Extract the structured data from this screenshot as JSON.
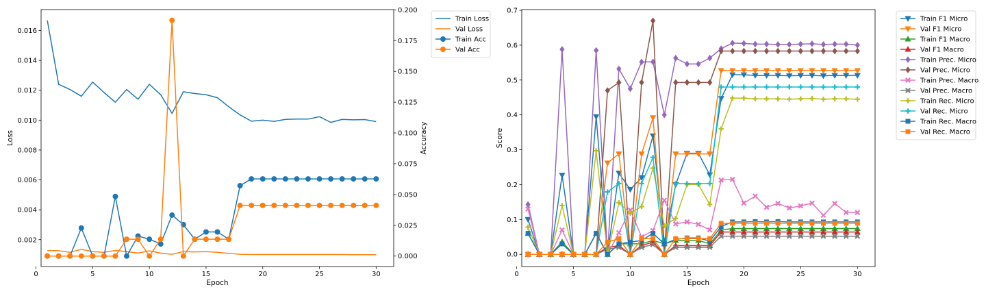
{
  "chart_data": [
    {
      "type": "line",
      "xlabel": "Epoch",
      "ylabel": "Loss",
      "ylabel_right": "Accuracy",
      "x": [
        1,
        2,
        3,
        4,
        5,
        6,
        7,
        8,
        9,
        10,
        11,
        12,
        13,
        14,
        15,
        16,
        17,
        18,
        19,
        20,
        21,
        22,
        23,
        24,
        25,
        26,
        27,
        28,
        29,
        30
      ],
      "xlim": [
        0.45,
        31.55
      ],
      "xticks": [
        0,
        5,
        10,
        15,
        20,
        25,
        30
      ],
      "ylim": [
        0.0002,
        0.0174
      ],
      "yticks": [
        0.002,
        0.004,
        0.006,
        0.008,
        0.01,
        0.012,
        0.014,
        0.016
      ],
      "ytick_labels": [
        "0.002",
        "0.004",
        "0.006",
        "0.008",
        "0.010",
        "0.012",
        "0.014",
        "0.016"
      ],
      "y2lim": [
        -0.0085,
        0.2002
      ],
      "y2ticks": [
        0,
        0.025,
        0.05,
        0.075,
        0.1,
        0.125,
        0.15,
        0.175,
        0.2
      ],
      "y2tick_labels": [
        "0.000",
        "0.025",
        "0.050",
        "0.075",
        "0.100",
        "0.125",
        "0.150",
        "0.175",
        "0.200"
      ],
      "legend_position": "outside-right",
      "grid": false,
      "series": [
        {
          "name": "Train Loss",
          "color": "#1f77b4",
          "marker": "none",
          "axis": "left",
          "values": [
            0.01668,
            0.0124,
            0.01205,
            0.0116,
            0.01255,
            0.01185,
            0.0112,
            0.01205,
            0.0114,
            0.0124,
            0.0117,
            0.01045,
            0.0119,
            0.01178,
            0.0117,
            0.0115,
            0.0109,
            0.01035,
            0.00993,
            0.01,
            0.00992,
            0.01005,
            0.01007,
            0.01007,
            0.01023,
            0.00985,
            0.01005,
            0.01002,
            0.01004,
            0.0099
          ]
        },
        {
          "name": "Val Loss",
          "color": "#ff7f0e",
          "marker": "none",
          "axis": "left",
          "values": [
            0.00128,
            0.00126,
            0.00115,
            0.00135,
            0.0012,
            0.00115,
            0.00128,
            0.0012,
            0.0011,
            0.00125,
            0.0011,
            0.00102,
            0.0012,
            0.00118,
            0.0012,
            0.00115,
            0.00108,
            0.00102,
            0.001,
            0.001,
            0.001,
            0.001,
            0.001,
            0.001,
            0.001,
            0.001,
            0.001,
            0.00099,
            0.00099,
            0.00099
          ]
        },
        {
          "name": "Train Acc",
          "color": "#1f77b4",
          "marker": "circle",
          "axis": "right",
          "values": [
            0,
            0,
            0,
            0.0228,
            0,
            0,
            0.0484,
            0,
            0.0163,
            0.0137,
            0.0098,
            0.0333,
            0.0255,
            0.0137,
            0.0196,
            0.0196,
            0.0137,
            0.0572,
            0.0627,
            0.0627,
            0.0627,
            0.0627,
            0.0627,
            0.0627,
            0.0627,
            0.0627,
            0.0627,
            0.0627,
            0.0627,
            0.0627
          ]
        },
        {
          "name": "Val Acc",
          "color": "#ff7f0e",
          "marker": "circle",
          "axis": "right",
          "values": [
            0,
            0,
            0,
            0,
            0,
            0,
            0,
            0.0137,
            0.0137,
            0,
            0.0137,
            0.1915,
            0,
            0.0137,
            0.0137,
            0.0137,
            0.0137,
            0.0412,
            0.0412,
            0.0412,
            0.0412,
            0.0412,
            0.0412,
            0.0412,
            0.0412,
            0.0412,
            0.0412,
            0.0412,
            0.0412,
            0.0412
          ]
        }
      ]
    },
    {
      "type": "line",
      "xlabel": "Epoch",
      "ylabel": "Score",
      "x": [
        1,
        2,
        3,
        4,
        5,
        6,
        7,
        8,
        9,
        10,
        11,
        12,
        13,
        14,
        15,
        16,
        17,
        18,
        19,
        20,
        21,
        22,
        23,
        24,
        25,
        26,
        27,
        28,
        29,
        30
      ],
      "xlim": [
        0.45,
        31.55
      ],
      "xticks": [
        0,
        5,
        10,
        15,
        20,
        25,
        30
      ],
      "ylim": [
        -0.035,
        0.702
      ],
      "yticks": [
        0,
        0.1,
        0.2,
        0.3,
        0.4,
        0.5,
        0.6,
        0.7
      ],
      "ytick_labels": [
        "0.0",
        "0.1",
        "0.2",
        "0.3",
        "0.4",
        "0.5",
        "0.6",
        "0.7"
      ],
      "legend_position": "outside-right",
      "grid": false,
      "series": [
        {
          "name": "Train F1 Micro",
          "color": "#1f77b4",
          "marker": "tri_down",
          "values": [
            0.1,
            0,
            0,
            0.227,
            0,
            0,
            0.395,
            0,
            0.233,
            0.186,
            0.22,
            0.34,
            0.035,
            0.2,
            0.29,
            0.29,
            0.228,
            0.447,
            0.515,
            0.515,
            0.513,
            0.513,
            0.513,
            0.512,
            0.513,
            0.513,
            0.512,
            0.513,
            0.513,
            0.513
          ]
        },
        {
          "name": "Val F1 Micro",
          "color": "#ff7f0e",
          "marker": "tri_down",
          "values": [
            0,
            0,
            0,
            0,
            0,
            0,
            0,
            0.262,
            0.288,
            0,
            0.288,
            0.392,
            0,
            0.288,
            0.288,
            0.288,
            0.288,
            0.527,
            0.527,
            0.527,
            0.527,
            0.527,
            0.527,
            0.527,
            0.527,
            0.527,
            0.527,
            0.527,
            0.527,
            0.527
          ]
        },
        {
          "name": "Train F1 Macro",
          "color": "#2ca02c",
          "marker": "tri_up",
          "values": [
            0.06,
            0,
            0,
            0.036,
            0,
            0,
            0.06,
            0,
            0.03,
            0.03,
            0.03,
            0.04,
            0.03,
            0.04,
            0.04,
            0.04,
            0.03,
            0.07,
            0.074,
            0.074,
            0.074,
            0.074,
            0.074,
            0.074,
            0.074,
            0.074,
            0.074,
            0.074,
            0.074,
            0.074
          ]
        },
        {
          "name": "Val F1 Macro",
          "color": "#d62728",
          "marker": "tri_up",
          "values": [
            0,
            0,
            0,
            0,
            0,
            0,
            0,
            0.02,
            0.025,
            0,
            0.025,
            0.035,
            0,
            0.025,
            0.025,
            0.025,
            0.025,
            0.064,
            0.064,
            0.064,
            0.064,
            0.064,
            0.064,
            0.064,
            0.064,
            0.064,
            0.064,
            0.064,
            0.064,
            0.064
          ]
        },
        {
          "name": "Train Prec. Micro",
          "color": "#9467bd",
          "marker": "diamond",
          "values": [
            0.143,
            0,
            0,
            0.588,
            0,
            0,
            0.585,
            0,
            0.532,
            0.475,
            0.552,
            0.552,
            0.4,
            0.563,
            0.546,
            0.546,
            0.563,
            0.59,
            0.606,
            0.605,
            0.603,
            0.603,
            0.602,
            0.602,
            0.603,
            0.604,
            0.602,
            0.603,
            0.603,
            0.6
          ]
        },
        {
          "name": "Val Prec. Micro",
          "color": "#8c564b",
          "marker": "diamond",
          "values": [
            0,
            0,
            0,
            0,
            0,
            0,
            0,
            0.47,
            0.493,
            0,
            0.493,
            0.67,
            0,
            0.493,
            0.493,
            0.493,
            0.493,
            0.583,
            0.583,
            0.583,
            0.583,
            0.583,
            0.583,
            0.583,
            0.583,
            0.583,
            0.583,
            0.583,
            0.583,
            0.583
          ]
        },
        {
          "name": "Train Prec. Macro",
          "color": "#e377c2",
          "marker": "x",
          "values": [
            0.13,
            0,
            0,
            0.07,
            0,
            0,
            0.06,
            0,
            0.062,
            0.127,
            0.05,
            0.068,
            0.155,
            0.087,
            0.093,
            0.086,
            0.07,
            0.213,
            0.215,
            0.147,
            0.167,
            0.135,
            0.146,
            0.133,
            0.139,
            0.147,
            0.112,
            0.146,
            0.12,
            0.12
          ]
        },
        {
          "name": "Val Prec. Macro",
          "color": "#7f7f7f",
          "marker": "x",
          "values": [
            0,
            0,
            0,
            0,
            0,
            0,
            0,
            0.015,
            0.02,
            0,
            0.02,
            0.028,
            0,
            0.02,
            0.02,
            0.02,
            0.02,
            0.052,
            0.052,
            0.052,
            0.052,
            0.052,
            0.052,
            0.052,
            0.052,
            0.052,
            0.052,
            0.052,
            0.052,
            0.052
          ]
        },
        {
          "name": "Train Rec. Micro",
          "color": "#bcbd22",
          "marker": "plus",
          "values": [
            0.078,
            0,
            0,
            0.14,
            0,
            0,
            0.297,
            0,
            0.148,
            0.118,
            0.137,
            0.247,
            0.082,
            0.103,
            0.2,
            0.2,
            0.143,
            0.36,
            0.448,
            0.448,
            0.446,
            0.446,
            0.446,
            0.445,
            0.446,
            0.447,
            0.445,
            0.446,
            0.446,
            0.445
          ]
        },
        {
          "name": "Val Rec. Micro",
          "color": "#17becf",
          "marker": "plus",
          "values": [
            0,
            0,
            0,
            0,
            0,
            0,
            0,
            0.179,
            0.203,
            0,
            0.203,
            0.278,
            0,
            0.203,
            0.203,
            0.203,
            0.203,
            0.48,
            0.48,
            0.48,
            0.48,
            0.48,
            0.48,
            0.48,
            0.48,
            0.48,
            0.48,
            0.48,
            0.48,
            0.48
          ]
        },
        {
          "name": "Train Rec. Macro",
          "color": "#1f77b4",
          "marker": "square",
          "values": [
            0.06,
            0,
            0,
            0.03,
            0,
            0,
            0.06,
            0,
            0.03,
            0.035,
            0.04,
            0.06,
            0.03,
            0.043,
            0.047,
            0.047,
            0.038,
            0.08,
            0.093,
            0.093,
            0.094,
            0.093,
            0.094,
            0.093,
            0.093,
            0.093,
            0.093,
            0.093,
            0.093,
            0.093
          ]
        },
        {
          "name": "Val Rec. Macro",
          "color": "#ff7f0e",
          "marker": "square",
          "values": [
            0,
            0,
            0,
            0,
            0,
            0,
            0,
            0.035,
            0.045,
            0,
            0.045,
            0.045,
            0,
            0.045,
            0.045,
            0.045,
            0.045,
            0.089,
            0.089,
            0.089,
            0.089,
            0.089,
            0.089,
            0.089,
            0.089,
            0.089,
            0.089,
            0.089,
            0.089,
            0.089
          ]
        }
      ]
    }
  ]
}
